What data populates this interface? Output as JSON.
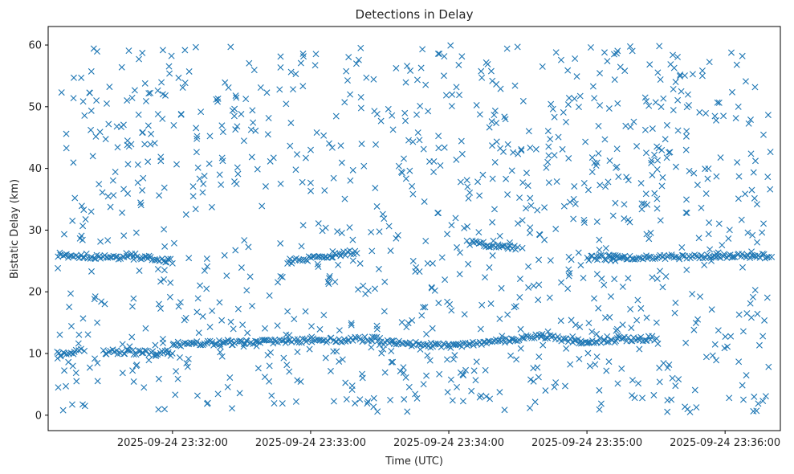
{
  "chart_data": {
    "type": "scatter",
    "title": "Detections in Delay",
    "xlabel": "Time (UTC)",
    "ylabel": "Bistatic Delay (km)",
    "marker": "x",
    "color": "#1f77b4",
    "grid": false,
    "legend": null,
    "xlim": [
      "2025-09-24 23:31:06",
      "2025-09-24 23:36:24"
    ],
    "ylim": [
      -2.5,
      63
    ],
    "x_ticks": [
      "2025-09-24 23:32:00",
      "2025-09-24 23:33:00",
      "2025-09-24 23:34:00",
      "2025-09-24 23:35:00",
      "2025-09-24 23:36:00"
    ],
    "y_ticks": [
      0,
      10,
      20,
      30,
      40,
      50,
      60
    ],
    "series": [
      {
        "x_start": "2025-09-24 23:31:10",
        "x_end": "2025-09-24 23:36:20",
        "tracks": [
          {
            "from": [
              "2025-09-24 23:31:10",
              10.0
            ],
            "to": [
              "2025-09-24 23:31:20",
              10.4
            ]
          },
          {
            "from": [
              "2025-09-24 23:31:30",
              10.3
            ],
            "to": [
              "2025-09-24 23:32:00",
              10.0
            ]
          },
          {
            "from": [
              "2025-09-24 23:32:00",
              11.5
            ],
            "to": [
              "2025-09-24 23:33:30",
              12.4
            ]
          },
          {
            "from": [
              "2025-09-24 23:33:30",
              11.8
            ],
            "to": [
              "2025-09-24 23:34:00",
              11.2
            ]
          },
          {
            "from": [
              "2025-09-24 23:34:00",
              11.2
            ],
            "to": [
              "2025-09-24 23:34:40",
              12.8
            ]
          },
          {
            "from": [
              "2025-09-24 23:34:40",
              12.8
            ],
            "to": [
              "2025-09-24 23:35:00",
              11.8
            ]
          },
          {
            "from": [
              "2025-09-24 23:35:00",
              12.0
            ],
            "to": [
              "2025-09-24 23:35:30",
              12.5
            ]
          },
          {
            "from": [
              "2025-09-24 23:31:10",
              26.0
            ],
            "to": [
              "2025-09-24 23:31:40",
              25.5
            ]
          },
          {
            "from": [
              "2025-09-24 23:31:40",
              26.0
            ],
            "to": [
              "2025-09-24 23:32:00",
              25.0
            ]
          },
          {
            "from": [
              "2025-09-24 23:32:50",
              24.8
            ],
            "to": [
              "2025-09-24 23:33:20",
              26.5
            ]
          },
          {
            "from": [
              "2025-09-24 23:34:10",
              28.0
            ],
            "to": [
              "2025-09-24 23:34:30",
              27.0
            ]
          },
          {
            "from": [
              "2025-09-24 23:35:00",
              25.5
            ],
            "to": [
              "2025-09-24 23:36:20",
              25.8
            ]
          }
        ],
        "background_range": [
          0.5,
          60
        ]
      }
    ]
  }
}
